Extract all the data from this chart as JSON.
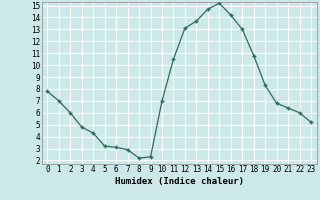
{
  "x": [
    0,
    1,
    2,
    3,
    4,
    5,
    6,
    7,
    8,
    9,
    10,
    11,
    12,
    13,
    14,
    15,
    16,
    17,
    18,
    19,
    20,
    21,
    22,
    23
  ],
  "y": [
    7.8,
    7.0,
    6.0,
    4.8,
    4.3,
    3.2,
    3.1,
    2.9,
    2.2,
    2.3,
    7.0,
    10.5,
    13.1,
    13.7,
    14.7,
    15.2,
    14.2,
    13.0,
    10.8,
    8.3,
    6.8,
    6.4,
    6.0,
    5.2
  ],
  "xlabel": "Humidex (Indice chaleur)",
  "ylim_min": 2,
  "ylim_max": 15,
  "xlim_min": 0,
  "xlim_max": 23,
  "yticks": [
    2,
    3,
    4,
    5,
    6,
    7,
    8,
    9,
    10,
    11,
    12,
    13,
    14,
    15
  ],
  "xticks": [
    0,
    1,
    2,
    3,
    4,
    5,
    6,
    7,
    8,
    9,
    10,
    11,
    12,
    13,
    14,
    15,
    16,
    17,
    18,
    19,
    20,
    21,
    22,
    23
  ],
  "line_color": "#2e6b5e",
  "marker": "+",
  "bg_color": "#cce8e8",
  "grid_color": "#ffffff",
  "tick_fontsize": 5.5,
  "xlabel_fontsize": 6.5
}
